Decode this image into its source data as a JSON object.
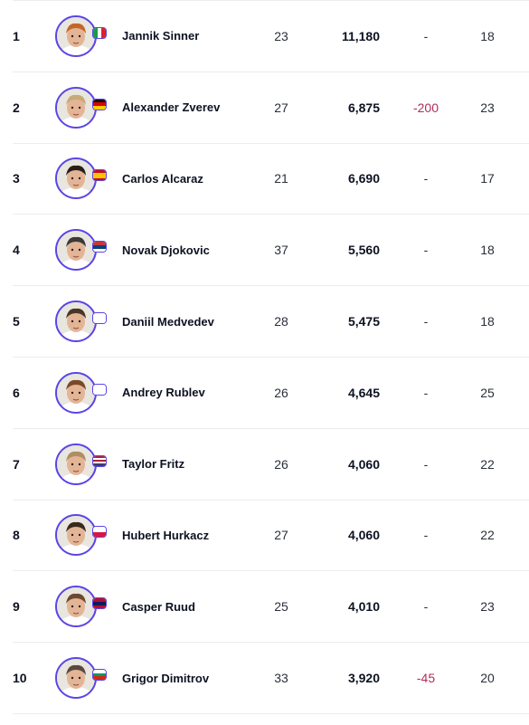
{
  "colors": {
    "accent": "#5a45e6",
    "negative": "#b02d5e",
    "divider": "#ececf0"
  },
  "rankings": [
    {
      "rank": "1",
      "name": "Jannik Sinner",
      "age": "23",
      "points": "11,180",
      "change": "-",
      "tournaments": "18",
      "country": "ITA",
      "flag_icon": "italy-flag-icon"
    },
    {
      "rank": "2",
      "name": "Alexander Zverev",
      "age": "27",
      "points": "6,875",
      "change": "-200",
      "tournaments": "23",
      "country": "GER",
      "flag_icon": "germany-flag-icon"
    },
    {
      "rank": "3",
      "name": "Carlos Alcaraz",
      "age": "21",
      "points": "6,690",
      "change": "-",
      "tournaments": "17",
      "country": "ESP",
      "flag_icon": "spain-flag-icon"
    },
    {
      "rank": "4",
      "name": "Novak Djokovic",
      "age": "37",
      "points": "5,560",
      "change": "-",
      "tournaments": "18",
      "country": "SRB",
      "flag_icon": "serbia-flag-icon"
    },
    {
      "rank": "5",
      "name": "Daniil Medvedev",
      "age": "28",
      "points": "5,475",
      "change": "-",
      "tournaments": "18",
      "country": "NEUTRAL",
      "flag_icon": "blank-flag-icon"
    },
    {
      "rank": "6",
      "name": "Andrey Rublev",
      "age": "26",
      "points": "4,645",
      "change": "-",
      "tournaments": "25",
      "country": "NEUTRAL",
      "flag_icon": "blank-flag-icon"
    },
    {
      "rank": "7",
      "name": "Taylor Fritz",
      "age": "26",
      "points": "4,060",
      "change": "-",
      "tournaments": "22",
      "country": "USA",
      "flag_icon": "usa-flag-icon"
    },
    {
      "rank": "8",
      "name": "Hubert Hurkacz",
      "age": "27",
      "points": "4,060",
      "change": "-",
      "tournaments": "22",
      "country": "POL",
      "flag_icon": "poland-flag-icon"
    },
    {
      "rank": "9",
      "name": "Casper Ruud",
      "age": "25",
      "points": "4,010",
      "change": "-",
      "tournaments": "23",
      "country": "NOR",
      "flag_icon": "norway-flag-icon"
    },
    {
      "rank": "10",
      "name": "Grigor Dimitrov",
      "age": "33",
      "points": "3,920",
      "change": "-45",
      "tournaments": "20",
      "country": "BUL",
      "flag_icon": "bulgaria-flag-icon"
    }
  ]
}
